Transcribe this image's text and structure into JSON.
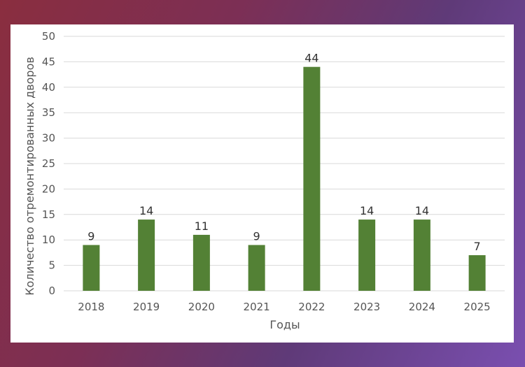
{
  "chart_data": {
    "type": "bar",
    "categories": [
      "2018",
      "2019",
      "2020",
      "2021",
      "2022",
      "2023",
      "2024",
      "2025"
    ],
    "values": [
      9,
      14,
      11,
      9,
      44,
      14,
      14,
      7
    ],
    "xlabel": "Годы",
    "ylabel": "Количество отремонтированных дворов",
    "ylim": [
      0,
      50
    ],
    "yticks": [
      0,
      5,
      10,
      15,
      20,
      25,
      30,
      35,
      40,
      45,
      50
    ],
    "grid": true,
    "bar_color": "#538135",
    "grid_color": "#d9d9d9"
  }
}
